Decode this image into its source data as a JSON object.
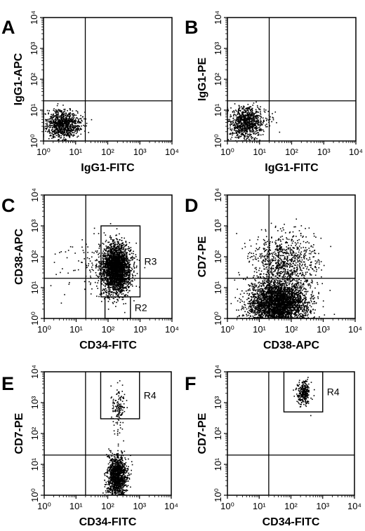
{
  "figure": {
    "panels": [
      {
        "letter": "A",
        "xlabel": "IgG1-FITC",
        "ylabel": "IgG1-APC"
      },
      {
        "letter": "B",
        "xlabel": "IgG1-FITC",
        "ylabel": "IgG1-PE"
      },
      {
        "letter": "C",
        "xlabel": "CD34-FITC",
        "ylabel": "CD38-APC"
      },
      {
        "letter": "D",
        "xlabel": "CD38-APC",
        "ylabel": "CD7-PE"
      },
      {
        "letter": "E",
        "xlabel": "CD34-FITC",
        "ylabel": "CD7-PE"
      },
      {
        "letter": "F",
        "xlabel": "CD34-FITC",
        "ylabel": "CD7-PE"
      }
    ]
  },
  "chart_data": [
    {
      "type": "scatter",
      "title": "A",
      "xlabel": "IgG1-FITC",
      "ylabel": "IgG1-APC",
      "xscale": "log",
      "yscale": "log",
      "xlim": [
        1,
        10000
      ],
      "ylim": [
        1,
        10000
      ],
      "xticks": [
        "10⁰",
        "10¹",
        "10²",
        "10³",
        "10⁴"
      ],
      "yticks": [
        "10⁰",
        "10¹",
        "10²",
        "10³",
        "10⁴"
      ],
      "quadrant_lines": {
        "x": 20,
        "y": 20
      },
      "gates": [],
      "populations": [
        {
          "x_center": 4,
          "y_center": 3.5,
          "x_spread_decades": 0.28,
          "y_spread_decades": 0.22,
          "count": 900
        }
      ]
    },
    {
      "type": "scatter",
      "title": "B",
      "xlabel": "IgG1-FITC",
      "ylabel": "IgG1-PE",
      "xscale": "log",
      "yscale": "log",
      "xlim": [
        1,
        10000
      ],
      "ylim": [
        1,
        10000
      ],
      "xticks": [
        "10⁰",
        "10¹",
        "10²",
        "10³",
        "10⁴"
      ],
      "yticks": [
        "10⁰",
        "10¹",
        "10²",
        "10³",
        "10⁴"
      ],
      "quadrant_lines": {
        "x": 20,
        "y": 20
      },
      "gates": [],
      "populations": [
        {
          "x_center": 4,
          "y_center": 4,
          "x_spread_decades": 0.28,
          "y_spread_decades": 0.25,
          "count": 900
        }
      ]
    },
    {
      "type": "scatter",
      "title": "C",
      "xlabel": "CD34-FITC",
      "ylabel": "CD38-APC",
      "xscale": "log",
      "yscale": "log",
      "xlim": [
        1,
        10000
      ],
      "ylim": [
        1,
        10000
      ],
      "xticks": [
        "10⁰",
        "10¹",
        "10²",
        "10³",
        "10⁴"
      ],
      "yticks": [
        "10⁰",
        "10¹",
        "10²",
        "10³",
        "10⁴"
      ],
      "quadrant_lines": {
        "x": 20,
        "y": 20
      },
      "gates": [
        {
          "label": "R3",
          "x": [
            60,
            1000
          ],
          "y": [
            5,
            1000
          ]
        },
        {
          "label": "R2",
          "x": [
            80,
            500
          ],
          "y": [
            1,
            5
          ]
        }
      ],
      "populations": [
        {
          "x_center": 180,
          "y_center": 40,
          "x_spread_decades": 0.22,
          "y_spread_decades": 0.4,
          "count": 2600
        },
        {
          "x_center": 40,
          "y_center": 50,
          "x_spread_decades": 0.6,
          "y_spread_decades": 0.5,
          "count": 160
        }
      ]
    },
    {
      "type": "scatter",
      "title": "D",
      "xlabel": "CD38-APC",
      "ylabel": "CD7-PE",
      "xscale": "log",
      "yscale": "log",
      "xlim": [
        1,
        10000
      ],
      "ylim": [
        1,
        10000
      ],
      "xticks": [
        "10⁰",
        "10¹",
        "10²",
        "10³",
        "10⁴"
      ],
      "yticks": [
        "10⁰",
        "10¹",
        "10²",
        "10³",
        "10⁴"
      ],
      "quadrant_lines": {
        "x": 20,
        "y": 20
      },
      "gates": [],
      "populations": [
        {
          "x_center": 40,
          "y_center": 3,
          "x_spread_decades": 0.45,
          "y_spread_decades": 0.35,
          "count": 3200
        },
        {
          "x_center": 60,
          "y_center": 60,
          "x_spread_decades": 0.5,
          "y_spread_decades": 0.5,
          "count": 900
        }
      ]
    },
    {
      "type": "scatter",
      "title": "E",
      "xlabel": "CD34-FITC",
      "ylabel": "CD7-PE",
      "xscale": "log",
      "yscale": "log",
      "xlim": [
        1,
        10000
      ],
      "ylim": [
        1,
        10000
      ],
      "xticks": [
        "10⁰",
        "10¹",
        "10²",
        "10³",
        "10⁴"
      ],
      "yticks": [
        "10⁰",
        "10¹",
        "10²",
        "10³",
        "10⁴"
      ],
      "quadrant_lines": {
        "x": 20,
        "y": 20
      },
      "gates": [
        {
          "label": "R4",
          "x": [
            60,
            1000
          ],
          "y": [
            300,
            10000
          ]
        }
      ],
      "populations": [
        {
          "x_center": 200,
          "y_center": 4,
          "x_spread_decades": 0.15,
          "y_spread_decades": 0.35,
          "count": 1300
        },
        {
          "x_center": 220,
          "y_center": 700,
          "x_spread_decades": 0.1,
          "y_spread_decades": 0.4,
          "count": 140
        }
      ]
    },
    {
      "type": "scatter",
      "title": "F",
      "xlabel": "CD34-FITC",
      "ylabel": "CD7-PE",
      "xscale": "log",
      "yscale": "log",
      "xlim": [
        1,
        10000
      ],
      "ylim": [
        1,
        10000
      ],
      "xticks": [
        "10⁰",
        "10¹",
        "10²",
        "10³",
        "10⁴"
      ],
      "yticks": [
        "10⁰",
        "10¹",
        "10²",
        "10³",
        "10⁴"
      ],
      "quadrant_lines": {
        "x": 20,
        "y": 20
      },
      "gates": [
        {
          "label": "R4",
          "x": [
            60,
            1000
          ],
          "y": [
            500,
            10000
          ]
        }
      ],
      "populations": [
        {
          "x_center": 250,
          "y_center": 2000,
          "x_spread_decades": 0.1,
          "y_spread_decades": 0.2,
          "count": 280
        }
      ]
    }
  ]
}
